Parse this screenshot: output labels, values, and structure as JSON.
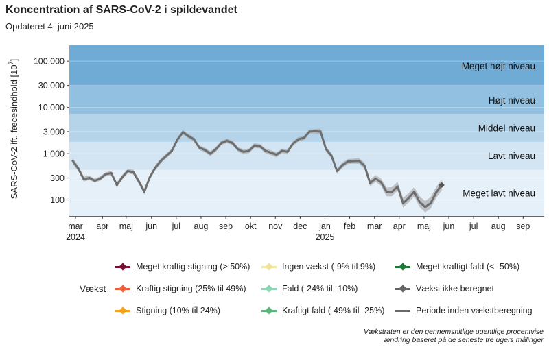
{
  "header": {
    "title": "Koncentration af SARS-CoV-2 i spildevandet",
    "subtitle": "Opdateret 4. juni 2025"
  },
  "chart_data": {
    "type": "line",
    "title": "Koncentration af SARS-CoV-2 i spildevandet",
    "ylabel": "SARS-CoV-2 ift. fæcesindhold [10^7]",
    "ylabel_main": "SARS-CoV-2 ift. fæcesindhold [10",
    "ylabel_sup": "7",
    "ylabel_end": "]",
    "yscale": "log",
    "ylim": [
      45,
      220000
    ],
    "y_ticks": [
      {
        "value": 100000,
        "label": "100.000"
      },
      {
        "value": 30000,
        "label": "30.000"
      },
      {
        "value": 10000,
        "label": "10.000"
      },
      {
        "value": 3000,
        "label": "3.000"
      },
      {
        "value": 1000,
        "label": "1.000"
      },
      {
        "value": 300,
        "label": "300"
      },
      {
        "value": 100,
        "label": "100"
      }
    ],
    "x_ticks": [
      {
        "week": 0.5,
        "label": "mar",
        "year": "2024"
      },
      {
        "week": 5.4,
        "label": "apr"
      },
      {
        "week": 9.7,
        "label": "maj"
      },
      {
        "week": 14.3,
        "label": "jun"
      },
      {
        "week": 18.8,
        "label": "jul"
      },
      {
        "week": 23.3,
        "label": "aug"
      },
      {
        "week": 27.8,
        "label": "sep"
      },
      {
        "week": 32.3,
        "label": "okt"
      },
      {
        "week": 36.8,
        "label": "nov"
      },
      {
        "week": 41.3,
        "label": "dec"
      },
      {
        "week": 45.8,
        "label": "jan",
        "year": "2025"
      },
      {
        "week": 50.3,
        "label": "feb"
      },
      {
        "week": 54.8,
        "label": "mar"
      },
      {
        "week": 59.3,
        "label": "apr"
      },
      {
        "week": 63.8,
        "label": "maj"
      },
      {
        "week": 68.3,
        "label": "jun"
      },
      {
        "week": 72.8,
        "label": "jul"
      },
      {
        "week": 77.3,
        "label": "aug"
      },
      {
        "week": 81.8,
        "label": "sep"
      }
    ],
    "xlim": [
      0,
      85
    ],
    "bands": [
      {
        "label": "Meget lavt niveau",
        "from": 45,
        "to": 450,
        "color": "#e6f0f8"
      },
      {
        "label": "Lavt niveau",
        "from": 450,
        "to": 1800,
        "color": "#d3e4f2"
      },
      {
        "label": "Middel niveau",
        "from": 1800,
        "to": 7200,
        "color": "#b5d4ea"
      },
      {
        "label": "Højt niveau",
        "from": 7200,
        "to": 28500,
        "color": "#92c0e1"
      },
      {
        "label": "Meget højt niveau",
        "from": 28500,
        "to": 220000,
        "color": "#70abd5"
      }
    ],
    "series": [
      {
        "name": "Koncentration",
        "x": [
          0,
          1,
          2,
          3,
          4,
          5,
          6,
          7,
          8,
          9,
          10,
          11,
          12,
          13,
          14,
          15,
          16,
          17,
          18,
          19,
          20,
          21,
          22,
          23,
          24,
          25,
          26,
          27,
          28,
          29,
          30,
          31,
          32,
          33,
          34,
          35,
          36,
          37,
          38,
          39,
          40,
          41,
          42,
          43,
          44,
          45,
          46,
          47,
          48,
          49,
          50,
          51,
          52,
          53,
          54,
          55,
          56,
          57,
          58,
          59,
          60,
          61,
          62,
          63,
          64,
          65,
          66,
          67
        ],
        "values": [
          700,
          480,
          280,
          300,
          260,
          290,
          360,
          380,
          210,
          310,
          420,
          400,
          250,
          150,
          310,
          500,
          700,
          900,
          1150,
          2000,
          2900,
          2400,
          2050,
          1350,
          1200,
          1000,
          1250,
          1700,
          1900,
          1700,
          1250,
          1100,
          1150,
          1500,
          1450,
          1150,
          1050,
          950,
          1150,
          1100,
          1650,
          2050,
          2200,
          3000,
          3050,
          3000,
          1250,
          900,
          420,
          570,
          680,
          690,
          700,
          550,
          230,
          290,
          240,
          150,
          150,
          195,
          85,
          110,
          150,
          90,
          70,
          85,
          145,
          210
        ],
        "lower": [
          600,
          420,
          250,
          270,
          235,
          260,
          325,
          340,
          185,
          275,
          375,
          355,
          220,
          130,
          275,
          440,
          620,
          800,
          1030,
          1800,
          2600,
          2150,
          1830,
          1200,
          1070,
          880,
          1100,
          1520,
          1700,
          1520,
          1110,
          970,
          1020,
          1340,
          1300,
          1020,
          930,
          840,
          1020,
          975,
          1470,
          1830,
          1960,
          2700,
          2750,
          2600,
          1100,
          790,
          370,
          500,
          600,
          610,
          610,
          470,
          195,
          245,
          200,
          120,
          120,
          160,
          68,
          88,
          120,
          70,
          54,
          65,
          110,
          160
        ],
        "upper": [
          800,
          550,
          320,
          335,
          290,
          325,
          400,
          420,
          240,
          350,
          470,
          450,
          285,
          175,
          350,
          570,
          790,
          1010,
          1280,
          2250,
          3250,
          2680,
          2300,
          1510,
          1350,
          1130,
          1400,
          1900,
          2120,
          1900,
          1400,
          1240,
          1290,
          1680,
          1620,
          1290,
          1180,
          1070,
          1290,
          1240,
          1850,
          2300,
          2470,
          3350,
          3400,
          3450,
          1420,
          1030,
          480,
          650,
          770,
          780,
          800,
          640,
          275,
          345,
          290,
          185,
          190,
          245,
          110,
          140,
          190,
          120,
          95,
          115,
          190,
          275
        ],
        "color": "#6e6e6e"
      }
    ],
    "legend": {
      "title": "Vækst",
      "items": [
        {
          "label": "Meget kraftig stigning (> 50%)",
          "color": "#7b1035"
        },
        {
          "label": "Kraftig stigning (25% til 49%)",
          "color": "#f2603a"
        },
        {
          "label": "Stigning (10% til 24%)",
          "color": "#f5a31a"
        },
        {
          "label": "Ingen vækst (-9% til 9%)",
          "color": "#ede39a"
        },
        {
          "label": "Fald (-24% til -10%)",
          "color": "#8fd6b3"
        },
        {
          "label": "Kraftigt fald (-49% til -25%)",
          "color": "#5ab47c"
        },
        {
          "label": "Meget kraftigt fald (< -50%)",
          "color": "#1f7a3a"
        },
        {
          "label": "Vækst ikke beregnet",
          "color": "#666666"
        },
        {
          "label": "Periode inden vækstberegning",
          "color": "#666666"
        }
      ]
    },
    "footnote_line1": "Vækstraten er den gennemsnitlige ugentlige procentvise",
    "footnote_line2": "ændring baseret på de seneste tre ugers målinger"
  }
}
